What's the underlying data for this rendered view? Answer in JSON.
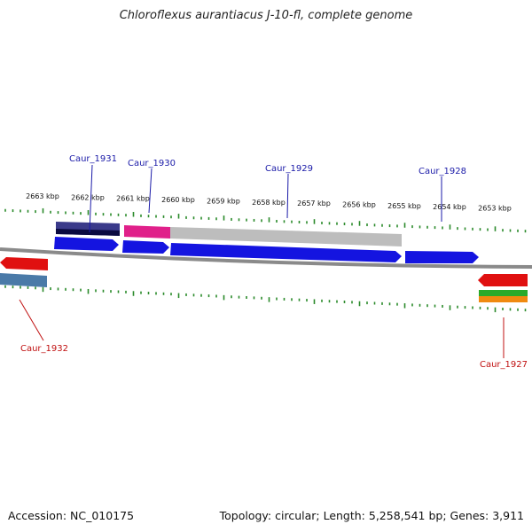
{
  "title": "Chloroflexus aurantiacus J-10-fl, complete genome",
  "footer": {
    "accession": "Accession: NC_010175",
    "summary": "Topology: circular; Length: 5,258,541 bp; Genes: 3,911"
  },
  "colors": {
    "backbone": "#8a8a8a",
    "tick": "#2a8a2a",
    "forward_gene": "#1414e0",
    "reverse_gene": "#e01010",
    "forward_label": "#1a1aa8",
    "reverse_label": "#c01010",
    "track_navy": "#3a3a8a",
    "track_pink": "#e0208a",
    "track_gray": "#bdbdbd",
    "track_steelblue": "#4a7aa8",
    "track_green": "#2aaa2a",
    "track_orange": "#f08a10"
  },
  "scale_labels": [
    {
      "label": "2663 kbp",
      "kbp": 2663
    },
    {
      "label": "2662 kbp",
      "kbp": 2662
    },
    {
      "label": "2661 kbp",
      "kbp": 2661
    },
    {
      "label": "2660 kbp",
      "kbp": 2660
    },
    {
      "label": "2659 kbp",
      "kbp": 2659
    },
    {
      "label": "2658 kbp",
      "kbp": 2658
    },
    {
      "label": "2657 kbp",
      "kbp": 2657
    },
    {
      "label": "2656 kbp",
      "kbp": 2656
    },
    {
      "label": "2655 kbp",
      "kbp": 2655
    },
    {
      "label": "2654 kbp",
      "kbp": 2654
    },
    {
      "label": "2653 kbp",
      "kbp": 2653
    }
  ],
  "genes": [
    {
      "name": "Caur_1931",
      "strand": "forward"
    },
    {
      "name": "Caur_1930",
      "strand": "forward"
    },
    {
      "name": "Caur_1929",
      "strand": "forward"
    },
    {
      "name": "Caur_1928",
      "strand": "forward"
    },
    {
      "name": "Caur_1932",
      "strand": "reverse"
    },
    {
      "name": "Caur_1927",
      "strand": "reverse"
    }
  ]
}
